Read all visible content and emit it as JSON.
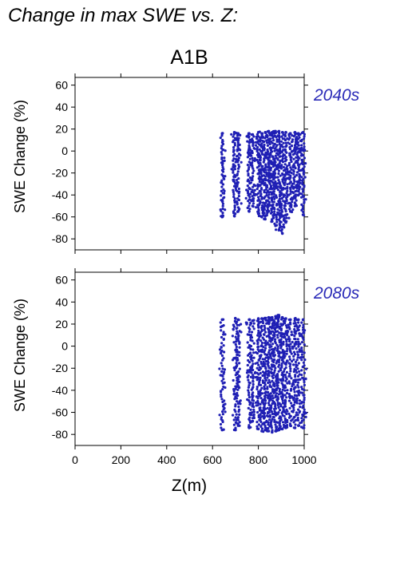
{
  "page_title": "Change in max SWE vs. Z:",
  "chart_data": {
    "type": "scatter",
    "title": "A1B",
    "xlabel": "Z(m)",
    "x_ticks": [
      0,
      200,
      400,
      600,
      800,
      1000
    ],
    "xlim": [
      0,
      1000
    ],
    "point_color": "#1f1fb4",
    "label_color": "#2b2bb8",
    "grid": false,
    "panels": [
      {
        "label": "2040s",
        "ylabel": "SWE Change (%)",
        "ylim": [
          -90,
          67
        ],
        "y_ticks": [
          60,
          40,
          20,
          0,
          -20,
          -40,
          -60,
          -80
        ],
        "columns": [
          {
            "z": 642,
            "min": -60,
            "max": 16,
            "n": 40
          },
          {
            "z": 695,
            "min": -59,
            "max": 17,
            "n": 40
          },
          {
            "z": 712,
            "min": -55,
            "max": 16,
            "n": 36
          },
          {
            "z": 760,
            "min": -55,
            "max": 16,
            "n": 40
          },
          {
            "z": 775,
            "min": -50,
            "max": 15,
            "n": 32
          },
          {
            "z": 800,
            "min": -57,
            "max": 17,
            "n": 40
          },
          {
            "z": 815,
            "min": -60,
            "max": 16,
            "n": 44
          },
          {
            "z": 830,
            "min": -62,
            "max": 17,
            "n": 44
          },
          {
            "z": 845,
            "min": -55,
            "max": 18,
            "n": 44
          },
          {
            "z": 860,
            "min": -64,
            "max": 17,
            "n": 48
          },
          {
            "z": 875,
            "min": -68,
            "max": 18,
            "n": 48
          },
          {
            "z": 890,
            "min": -72,
            "max": 18,
            "n": 48
          },
          {
            "z": 905,
            "min": -75,
            "max": 17,
            "n": 48
          },
          {
            "z": 920,
            "min": -65,
            "max": 17,
            "n": 44
          },
          {
            "z": 940,
            "min": -55,
            "max": 16,
            "n": 40
          },
          {
            "z": 960,
            "min": -50,
            "max": 17,
            "n": 40
          },
          {
            "z": 975,
            "min": -40,
            "max": 16,
            "n": 36
          },
          {
            "z": 995,
            "min": -58,
            "max": 17,
            "n": 40
          }
        ]
      },
      {
        "label": "2080s",
        "ylabel": "SWE Change (%)",
        "ylim": [
          -90,
          67
        ],
        "y_ticks": [
          60,
          40,
          20,
          0,
          -20,
          -40,
          -60,
          -80
        ],
        "columns": [
          {
            "z": 642,
            "min": -76,
            "max": 24,
            "n": 44
          },
          {
            "z": 700,
            "min": -76,
            "max": 25,
            "n": 44
          },
          {
            "z": 712,
            "min": -72,
            "max": 24,
            "n": 40
          },
          {
            "z": 760,
            "min": -74,
            "max": 24,
            "n": 44
          },
          {
            "z": 775,
            "min": -68,
            "max": 23,
            "n": 36
          },
          {
            "z": 800,
            "min": -75,
            "max": 25,
            "n": 48
          },
          {
            "z": 815,
            "min": -77,
            "max": 25,
            "n": 48
          },
          {
            "z": 830,
            "min": -76,
            "max": 25,
            "n": 50
          },
          {
            "z": 845,
            "min": -77,
            "max": 26,
            "n": 50
          },
          {
            "z": 860,
            "min": -78,
            "max": 26,
            "n": 52
          },
          {
            "z": 875,
            "min": -77,
            "max": 27,
            "n": 52
          },
          {
            "z": 890,
            "min": -76,
            "max": 28,
            "n": 52
          },
          {
            "z": 905,
            "min": -75,
            "max": 26,
            "n": 52
          },
          {
            "z": 920,
            "min": -74,
            "max": 25,
            "n": 48
          },
          {
            "z": 940,
            "min": -72,
            "max": 24,
            "n": 44
          },
          {
            "z": 960,
            "min": -74,
            "max": 25,
            "n": 44
          },
          {
            "z": 975,
            "min": -72,
            "max": 24,
            "n": 40
          },
          {
            "z": 995,
            "min": -74,
            "max": 24,
            "n": 44
          }
        ]
      }
    ]
  }
}
